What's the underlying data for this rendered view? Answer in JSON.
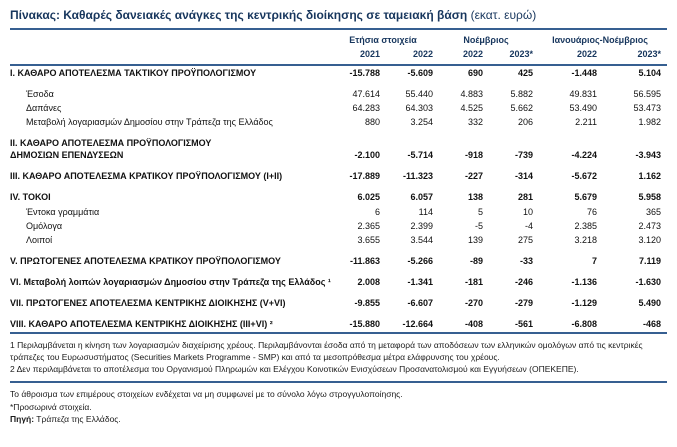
{
  "title": {
    "main": "Πίνακας: Καθαρές δανειακές ανάγκες της κεντρικής διοίκησης σε ταμειακή βάση ",
    "unit": "(εκατ. ευρώ)"
  },
  "table": {
    "groups": [
      {
        "label": "Ετήσια στοιχεία",
        "years": [
          "2021",
          "2022"
        ]
      },
      {
        "label": "Νοέμβριος",
        "years": [
          "2022",
          "2023*"
        ]
      },
      {
        "label": "Ιανουάριος-Νοέμβριος",
        "years": [
          "2022",
          "2023*"
        ]
      }
    ],
    "rows": [
      {
        "label": "I. ΚΑΘΑΡΟ ΑΠΟΤΕΛΕΣΜΑ ΤΑΚΤΙΚΟΥ ΠΡΟΫΠΟΛΟΓΙΣΜΟΥ",
        "style": "main",
        "spaceBefore": false,
        "values": [
          "-15.788",
          "-5.609",
          "690",
          "425",
          "-1.448",
          "5.104"
        ]
      },
      {
        "label": "Έσοδα",
        "style": "sub",
        "spaceBefore": true,
        "values": [
          "47.614",
          "55.440",
          "4.883",
          "5.882",
          "49.831",
          "56.595"
        ]
      },
      {
        "label": "Δαπάνες",
        "style": "sub",
        "spaceBefore": false,
        "values": [
          "64.283",
          "64.303",
          "4.525",
          "5.662",
          "53.490",
          "53.473"
        ]
      },
      {
        "label": "Μεταβολή λογαριασμών Δημοσίου στην Τράπεζα της Ελλάδος",
        "style": "sub",
        "spaceBefore": false,
        "values": [
          "880",
          "3.254",
          "332",
          "206",
          "2.211",
          "1.982"
        ]
      },
      {
        "label": "II. ΚΑΘΑΡΟ ΑΠΟΤΕΛΕΣΜΑ ΠΡΟΫΠΟΛΟΓΙΣΜΟΥ\nΔΗΜΟΣΙΩΝ ΕΠΕΝΔΥΣΕΩΝ",
        "style": "main",
        "spaceBefore": true,
        "values": [
          "-2.100",
          "-5.714",
          "-918",
          "-739",
          "-4.224",
          "-3.943"
        ]
      },
      {
        "label": "III. ΚΑΘΑΡΟ ΑΠΟΤΕΛΕΣΜΑ ΚΡΑΤΙΚΟΥ ΠΡΟΫΠΟΛΟΓΙΣΜΟΥ (I+II)",
        "style": "main",
        "spaceBefore": true,
        "values": [
          "-17.889",
          "-11.323",
          "-227",
          "-314",
          "-5.672",
          "1.162"
        ]
      },
      {
        "label": "IV. ΤΟΚΟΙ",
        "style": "main",
        "spaceBefore": true,
        "values": [
          "6.025",
          "6.057",
          "138",
          "281",
          "5.679",
          "5.958"
        ]
      },
      {
        "label": "Έντοκα γραμμάτια",
        "style": "sub",
        "spaceBefore": false,
        "values": [
          "6",
          "114",
          "5",
          "10",
          "76",
          "365"
        ]
      },
      {
        "label": "Ομόλογα",
        "style": "sub",
        "spaceBefore": false,
        "values": [
          "2.365",
          "2.399",
          "-5",
          "-4",
          "2.385",
          "2.473"
        ]
      },
      {
        "label": "Λοιποί",
        "style": "sub",
        "spaceBefore": false,
        "values": [
          "3.655",
          "3.544",
          "139",
          "275",
          "3.218",
          "3.120"
        ]
      },
      {
        "label": "V. ΠΡΩΤΟΓΕΝΕΣ ΑΠΟΤΕΛΕΣΜΑ ΚΡΑΤΙΚΟΥ ΠΡΟΫΠΟΛΟΓΙΣΜΟΥ",
        "style": "main",
        "spaceBefore": true,
        "values": [
          "-11.863",
          "-5.266",
          "-89",
          "-33",
          "7",
          "7.119"
        ]
      },
      {
        "label": "VI. Μεταβολή λοιπών λογαριασμών Δημοσίου στην Τράπεζα της Ελλάδος ¹",
        "style": "main",
        "spaceBefore": true,
        "values": [
          "2.008",
          "-1.341",
          "-181",
          "-246",
          "-1.136",
          "-1.630"
        ]
      },
      {
        "label": "VII. ΠΡΩΤΟΓΕΝΕΣ ΑΠΟΤΕΛΕΣΜΑ ΚΕΝΤΡΙΚΗΣ ΔΙΟΙΚΗΣΗΣ (V+VI)",
        "style": "main",
        "spaceBefore": true,
        "values": [
          "-9.855",
          "-6.607",
          "-270",
          "-279",
          "-1.129",
          "5.490"
        ]
      },
      {
        "label": "VIII. ΚΑΘΑΡΟ ΑΠΟΤΕΛΕΣΜΑ ΚΕΝΤΡΙΚΗΣ ΔΙΟΙΚΗΣΗΣ (III+VI) ²",
        "style": "main",
        "spaceBefore": true,
        "values": [
          "-15.880",
          "-12.664",
          "-408",
          "-561",
          "-6.808",
          "-468"
        ]
      }
    ]
  },
  "footnotes": [
    "1 Περιλαμβάνεται η κίνηση των λογαριασμών διαχείρισης χρέους. Περιλαμβάνονται έσοδα από τη μεταφορά των αποδόσεων των ελληνικών ομολόγων από τις κεντρικές τράπεζες του Ευρωσυστήματος (Securities Markets Programme - SMP) και από τα μεσοπρόθεσμα μέτρα ελάφρυνσης του χρέους.",
    "2 Δεν περιλαμβάνεται το αποτέλεσμα του Οργανισμού Πληρωμών και Ελέγχου Κοινοτικών Ενισχύσεων Προσανατολισμού και Εγγυήσεων (ΟΠΕΚΕΠΕ)."
  ],
  "notes": {
    "rounding": "Το άθροισμα των επιμέρους στοιχείων ενδέχεται να μη συμφωνεί με το σύνολο λόγω στρογγυλοποίησης.",
    "provisional": "*Προσωρινά στοιχεία.",
    "source_label": "Πηγή:",
    "source_text": " Τράπεζα της Ελλάδος."
  },
  "colors": {
    "heading": "#17365D",
    "rule": "#365F91",
    "body_text": "#111111"
  }
}
